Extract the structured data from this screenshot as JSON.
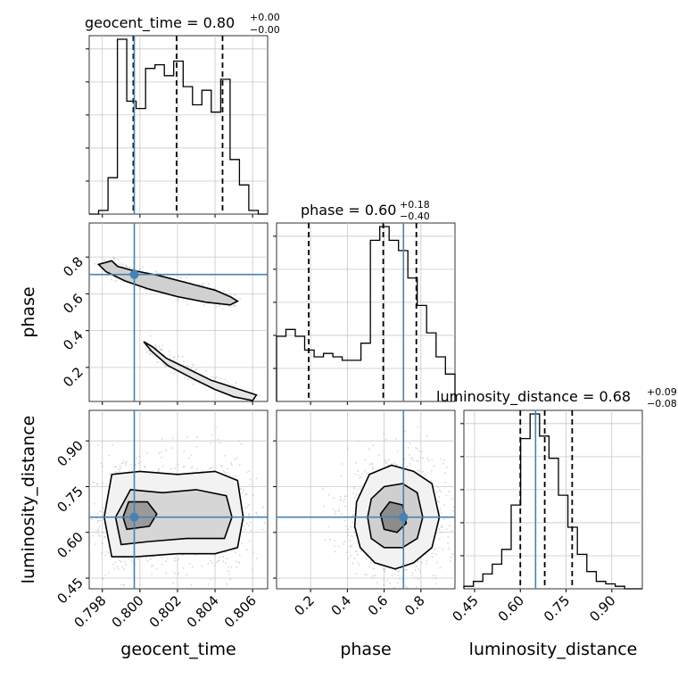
{
  "chart_data": {
    "type": "corner",
    "parameters": [
      "geocent_time",
      "phase",
      "luminosity_distance"
    ],
    "xlabels": [
      "geocent_time",
      "phase",
      "luminosity_distance"
    ],
    "ylabels": [
      "phase",
      "luminosity_distance"
    ],
    "ranges": {
      "geocent_time": [
        0.7973,
        0.8068
      ],
      "phase": [
        0.015,
        0.985
      ],
      "luminosity_distance": [
        0.415,
        1.0
      ]
    },
    "ticks": {
      "geocent_time": [
        "0.798",
        "0.800",
        "0.802",
        "0.804",
        "0.806"
      ],
      "phase": [
        "0.2",
        "0.4",
        "0.6",
        "0.8"
      ],
      "luminosity_distance": [
        "0.45",
        "0.60",
        "0.75",
        "0.90"
      ]
    },
    "titles": {
      "geocent_time": {
        "label": "geocent_time = 0.80",
        "sup": "+0.00",
        "sub": "−0.00"
      },
      "phase": {
        "label": "phase = 0.60",
        "sup": "+0.18",
        "sub": "−0.40"
      },
      "luminosity_distance": {
        "label": "luminosity_distance = 0.68",
        "sup": "+0.09",
        "sub": "−0.08"
      }
    },
    "quantiles": {
      "geocent_time": [
        0.79965,
        0.80195,
        0.8044
      ],
      "phase": [
        0.19,
        0.595,
        0.775
      ],
      "luminosity_distance": [
        0.6,
        0.68,
        0.77
      ]
    },
    "truths": {
      "geocent_time": 0.7997,
      "phase": 0.705,
      "luminosity_distance": 0.65
    },
    "histograms": {
      "geocent_time": {
        "edges": [
          0.7973,
          0.7978,
          0.7983,
          0.7988,
          0.7993,
          0.7998,
          0.8003,
          0.8008,
          0.8013,
          0.8018,
          0.8023,
          0.8028,
          0.8033,
          0.8038,
          0.8043,
          0.8048,
          0.8053,
          0.8058,
          0.8063,
          0.8068
        ],
        "counts": [
          0,
          1,
          10,
          48,
          31,
          29,
          40,
          41,
          38,
          42,
          35,
          30,
          34,
          28,
          37,
          15,
          8,
          1,
          0
        ]
      },
      "phase": {
        "edges": [
          0.015,
          0.066,
          0.117,
          0.168,
          0.219,
          0.27,
          0.321,
          0.372,
          0.423,
          0.474,
          0.525,
          0.576,
          0.627,
          0.678,
          0.729,
          0.78,
          0.831,
          0.882,
          0.933,
          0.985
        ],
        "counts": [
          19,
          21,
          19,
          15,
          13,
          14,
          13,
          12,
          12,
          17,
          47,
          51,
          47,
          44,
          36,
          28,
          20,
          13,
          8
        ]
      },
      "luminosity_distance": {
        "edges": [
          0.415,
          0.446,
          0.477,
          0.508,
          0.539,
          0.57,
          0.601,
          0.632,
          0.663,
          0.694,
          0.725,
          0.756,
          0.787,
          0.818,
          0.849,
          0.88,
          0.911,
          0.942,
          0.973,
          1.0
        ],
        "counts": [
          1,
          3,
          6,
          10,
          16,
          34,
          61,
          71,
          62,
          53,
          38,
          25,
          14,
          7,
          3,
          2,
          1,
          0,
          0
        ]
      }
    },
    "contours_2d": {
      "geocent_time_phase": [
        [
          [
            0.7985,
            0.78
          ],
          [
            0.7988,
            0.75
          ],
          [
            0.7995,
            0.73
          ],
          [
            0.801,
            0.7
          ],
          [
            0.8025,
            0.66
          ],
          [
            0.804,
            0.62
          ],
          [
            0.8048,
            0.585
          ],
          [
            0.8052,
            0.56
          ],
          [
            0.8048,
            0.54
          ],
          [
            0.8035,
            0.555
          ],
          [
            0.802,
            0.585
          ],
          [
            0.8005,
            0.625
          ],
          [
            0.7992,
            0.67
          ],
          [
            0.7982,
            0.72
          ],
          [
            0.7978,
            0.76
          ]
        ],
        [
          [
            0.8002,
            0.34
          ],
          [
            0.8006,
            0.29
          ],
          [
            0.8015,
            0.21
          ],
          [
            0.8028,
            0.14
          ],
          [
            0.804,
            0.08
          ],
          [
            0.805,
            0.04
          ],
          [
            0.806,
            0.02
          ],
          [
            0.8062,
            0.05
          ],
          [
            0.805,
            0.09
          ],
          [
            0.8038,
            0.13
          ],
          [
            0.8026,
            0.19
          ],
          [
            0.8014,
            0.25
          ],
          [
            0.8007,
            0.31
          ]
        ]
      ],
      "geocent_time_luminosity_distance": [
        [
          [
            0.7985,
            0.52
          ],
          [
            0.7998,
            0.52
          ],
          [
            0.802,
            0.53
          ],
          [
            0.804,
            0.53
          ],
          [
            0.8052,
            0.55
          ],
          [
            0.8055,
            0.65
          ],
          [
            0.8052,
            0.77
          ],
          [
            0.804,
            0.8
          ],
          [
            0.802,
            0.79
          ],
          [
            0.8,
            0.8
          ],
          [
            0.7985,
            0.79
          ],
          [
            0.7981,
            0.65
          ]
        ],
        [
          [
            0.799,
            0.56
          ],
          [
            0.8005,
            0.57
          ],
          [
            0.8025,
            0.58
          ],
          [
            0.8045,
            0.58
          ],
          [
            0.8049,
            0.65
          ],
          [
            0.8046,
            0.72
          ],
          [
            0.803,
            0.74
          ],
          [
            0.8012,
            0.73
          ],
          [
            0.7995,
            0.74
          ],
          [
            0.7987,
            0.65
          ]
        ],
        [
          [
            0.7993,
            0.61
          ],
          [
            0.8005,
            0.62
          ],
          [
            0.8009,
            0.66
          ],
          [
            0.8004,
            0.7
          ],
          [
            0.7994,
            0.7
          ],
          [
            0.7991,
            0.65
          ]
        ]
      ],
      "phase_luminosity_distance": [
        [
          [
            0.47,
            0.55
          ],
          [
            0.55,
            0.5
          ],
          [
            0.66,
            0.48
          ],
          [
            0.76,
            0.5
          ],
          [
            0.86,
            0.55
          ],
          [
            0.9,
            0.65
          ],
          [
            0.86,
            0.76
          ],
          [
            0.76,
            0.8
          ],
          [
            0.64,
            0.82
          ],
          [
            0.52,
            0.79
          ],
          [
            0.45,
            0.7
          ],
          [
            0.44,
            0.62
          ]
        ],
        [
          [
            0.53,
            0.58
          ],
          [
            0.6,
            0.55
          ],
          [
            0.7,
            0.55
          ],
          [
            0.78,
            0.58
          ],
          [
            0.81,
            0.65
          ],
          [
            0.78,
            0.73
          ],
          [
            0.7,
            0.76
          ],
          [
            0.6,
            0.75
          ],
          [
            0.53,
            0.71
          ],
          [
            0.51,
            0.65
          ]
        ],
        [
          [
            0.6,
            0.61
          ],
          [
            0.67,
            0.6
          ],
          [
            0.72,
            0.63
          ],
          [
            0.7,
            0.69
          ],
          [
            0.63,
            0.7
          ],
          [
            0.58,
            0.66
          ]
        ]
      ]
    }
  }
}
